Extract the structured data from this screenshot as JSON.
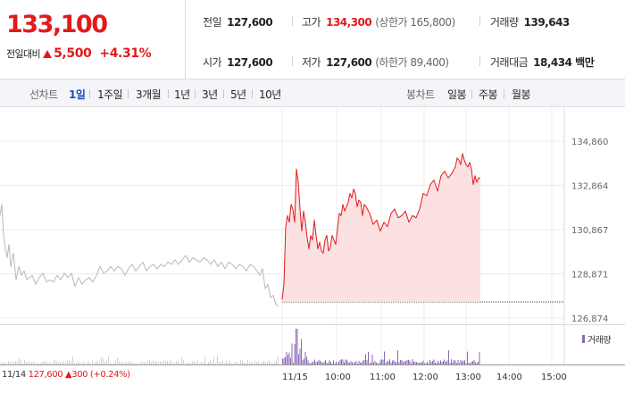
{
  "price": {
    "current": "133,100",
    "change_label": "전일대비",
    "change": "5,500",
    "change_pct": "+4.31%",
    "color": "#e3191c"
  },
  "stats": {
    "prev_close": {
      "label": "전일",
      "value": "127,600"
    },
    "high": {
      "label": "고가",
      "value": "134,300",
      "sub": "(상한가 165,800)"
    },
    "volume": {
      "label": "거래량",
      "value": "139,643"
    },
    "open": {
      "label": "시가",
      "value": "127,600"
    },
    "low": {
      "label": "저가",
      "value": "127,600",
      "sub": "(하한가 89,400)"
    },
    "amount": {
      "label": "거래대금",
      "value": "18,434 백만"
    }
  },
  "tabs": {
    "line_label": "선차트",
    "line_tabs": [
      "1일",
      "1주일",
      "3개월",
      "1년",
      "3년",
      "5년",
      "10년"
    ],
    "active_index": 0,
    "candle_label": "봉차트",
    "candle_tabs": [
      "일봉",
      "주봉",
      "월봉"
    ]
  },
  "volume_legend": "거래량",
  "bottom_info": {
    "date": "11/14",
    "price": "127,600",
    "change": "▲300 (+0.24%)"
  },
  "chart_data": {
    "type": "line",
    "title": "",
    "ylabel": "",
    "xlabel": "",
    "ylim": [
      126874,
      134860
    ],
    "y_ticks": [
      "134,860",
      "132,864",
      "130,867",
      "128,871",
      "126,874"
    ],
    "x_ticks": [
      "11/14",
      "11/15",
      "10:00",
      "11:00",
      "12:00",
      "13:00",
      "14:00",
      "15:00"
    ],
    "prev_close": 127600,
    "grid": true,
    "series": [
      {
        "color": "#b8b8b8",
        "x": [
          0,
          2,
          4,
          6,
          8,
          10,
          12,
          15,
          18,
          21,
          24,
          27,
          30,
          33,
          36,
          40,
          44,
          48,
          52,
          56,
          60,
          64,
          68,
          72,
          76,
          80,
          84,
          88,
          92,
          96,
          100,
          104,
          108,
          112,
          116,
          120,
          124,
          128,
          132,
          136,
          140,
          144,
          148,
          152,
          156,
          160,
          164,
          168,
          172,
          176,
          180,
          184,
          188,
          192,
          196,
          200,
          204,
          208,
          212,
          216,
          220,
          224,
          228,
          232,
          236,
          240,
          244,
          248,
          252,
          256,
          260,
          264,
          268,
          272,
          276,
          280,
          284,
          288,
          291,
          294,
          297,
          300,
          303,
          306,
          309,
          312
        ],
        "y": [
          131500,
          132000,
          130600,
          130000,
          129600,
          130200,
          129200,
          129800,
          128600,
          129200,
          128800,
          129000,
          128600,
          128700,
          128800,
          128400,
          128700,
          128900,
          128500,
          128600,
          128500,
          128800,
          128600,
          128900,
          128700,
          128900,
          128300,
          128700,
          128400,
          128600,
          128700,
          128500,
          128800,
          129200,
          128900,
          129000,
          129200,
          129000,
          129200,
          129100,
          128800,
          129100,
          129300,
          129000,
          129200,
          129400,
          129000,
          129200,
          129300,
          129100,
          129300,
          129200,
          129400,
          129300,
          129500,
          129300,
          129500,
          129700,
          129400,
          129600,
          129500,
          129400,
          129600,
          129500,
          129300,
          129500,
          129200,
          129400,
          129100,
          129400,
          129300,
          129100,
          129300,
          129200,
          129000,
          129300,
          129200,
          129000,
          128800,
          129100,
          128200,
          128400,
          127800,
          127900,
          127500,
          127400
        ]
      },
      {
        "color": "#e3191c",
        "x": [
          316,
          318,
          320,
          322,
          324,
          326,
          328,
          330,
          332,
          334,
          336,
          338,
          340,
          342,
          344,
          346,
          348,
          350,
          352,
          354,
          356,
          358,
          360,
          362,
          364,
          366,
          368,
          370,
          372,
          374,
          376,
          378,
          380,
          382,
          384,
          386,
          388,
          390,
          392,
          394,
          396,
          398,
          400,
          402,
          404,
          406,
          408,
          410,
          414,
          418,
          422,
          426,
          430,
          434,
          438,
          442,
          446,
          450,
          454,
          458,
          462,
          466,
          470,
          474,
          478,
          482,
          486,
          490,
          494,
          498,
          502,
          506,
          510,
          512,
          514,
          516,
          518,
          520,
          522,
          524,
          526,
          528,
          530,
          532,
          534,
          536,
          538
        ],
        "y": [
          127700,
          128400,
          131000,
          131500,
          131200,
          132000,
          131800,
          131200,
          133600,
          133000,
          131800,
          130800,
          131700,
          131200,
          130500,
          130000,
          130600,
          130400,
          131300,
          130600,
          130000,
          130300,
          129900,
          129800,
          130400,
          130600,
          129900,
          130100,
          130600,
          130400,
          130200,
          130900,
          131600,
          131500,
          132000,
          131700,
          131900,
          132100,
          132500,
          132300,
          132700,
          132500,
          131900,
          132200,
          132100,
          131500,
          132000,
          131900,
          131600,
          131100,
          131300,
          130800,
          131200,
          131000,
          131600,
          131800,
          131400,
          131500,
          131700,
          131200,
          131500,
          131400,
          131800,
          132500,
          132400,
          132900,
          133100,
          132600,
          133300,
          133500,
          133200,
          133400,
          133700,
          134100,
          134000,
          133800,
          134300,
          134000,
          133800,
          133700,
          133900,
          133600,
          132900,
          133300,
          133000,
          133200,
          133200
        ]
      }
    ]
  }
}
